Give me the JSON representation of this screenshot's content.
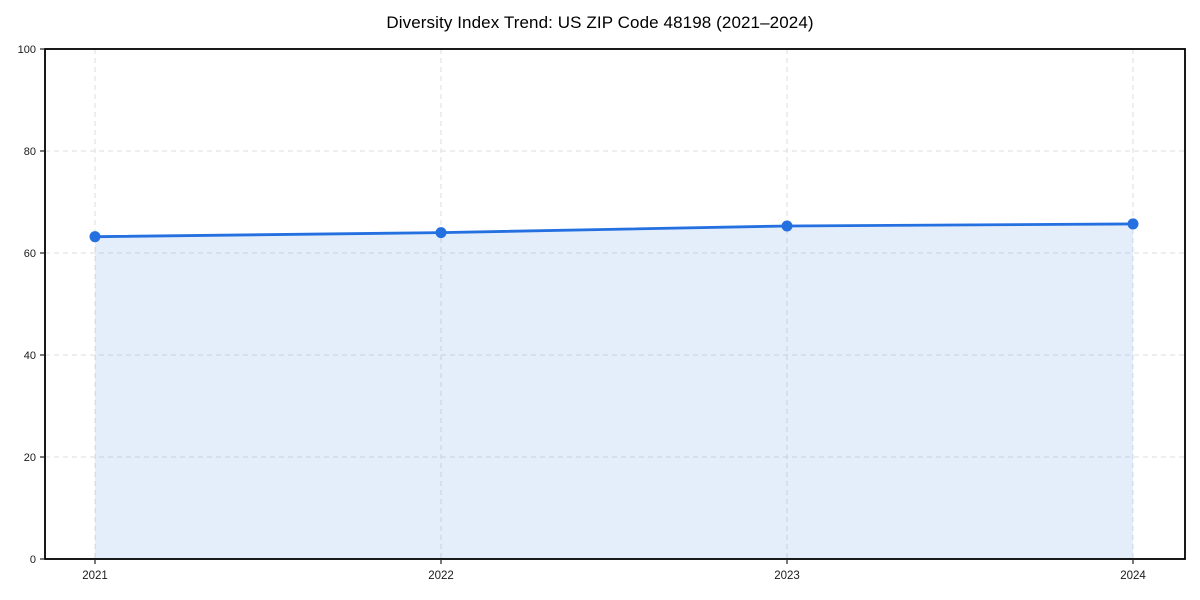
{
  "title": "Diversity Index Trend: US ZIP Code 48198 (2021–2024)",
  "chart_data": {
    "type": "area",
    "title": "Diversity Index Trend: US ZIP Code 48198 (2021–2024)",
    "categories": [
      "2021",
      "2022",
      "2023",
      "2024"
    ],
    "series": [
      {
        "name": "Diversity Index",
        "values": [
          63.2,
          64.0,
          65.3,
          65.7
        ]
      }
    ],
    "xlabel": "",
    "ylabel": "",
    "ylim": [
      0,
      100
    ],
    "yticks": [
      0,
      20,
      40,
      60,
      80,
      100
    ],
    "grid": true,
    "grid_style": "dashed",
    "legend_position": "none",
    "colors": {
      "line": "#2470e0",
      "marker": "#2470e0",
      "fill": "rgba(36, 112, 224, 0.12)",
      "grid": "#dcdcdc",
      "spine": "#000000",
      "tick": "#222222",
      "tick_label": "#1a1a1a"
    }
  }
}
